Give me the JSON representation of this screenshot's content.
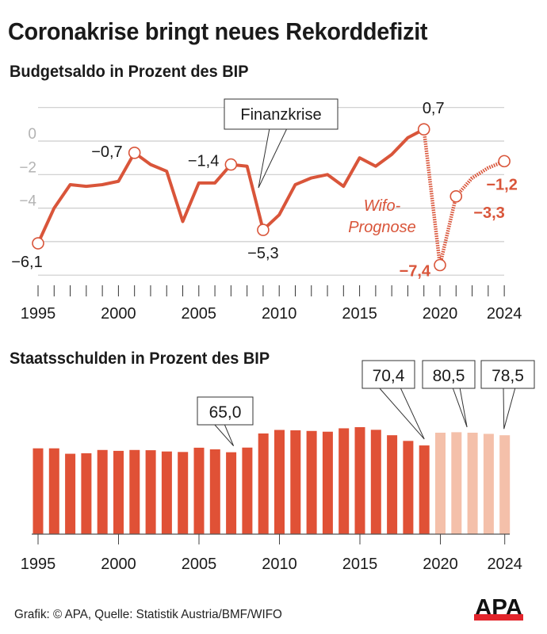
{
  "title": "Coronakrise bringt neues Rekorddefizit",
  "footer": {
    "source": "Grafik: © APA, Quelle: Statistik Austria/BMF/WIFO",
    "logo_text": "APA",
    "logo_icon": "apa-logo"
  },
  "colors": {
    "line": "#d9553a",
    "bar_actual": "#e05136",
    "bar_forecast": "#f4c0aa",
    "grid": "#cccccc",
    "y_tick": "#b3b3b3",
    "text": "#1a1a1a"
  },
  "chart_data": [
    {
      "type": "line",
      "title": "Budgetsaldo in Prozent des BIP",
      "xlabel": "",
      "ylabel": "",
      "x": [
        1995,
        1996,
        1997,
        1998,
        1999,
        2000,
        2001,
        2002,
        2003,
        2004,
        2005,
        2006,
        2007,
        2008,
        2009,
        2010,
        2011,
        2012,
        2013,
        2014,
        2015,
        2016,
        2017,
        2018,
        2019,
        2020,
        2021,
        2022,
        2023,
        2024
      ],
      "series": [
        {
          "name": "Budgetsaldo",
          "values": [
            -6.1,
            -4.0,
            -2.6,
            -2.7,
            -2.6,
            -2.4,
            -0.7,
            -1.4,
            -1.8,
            -4.8,
            -2.5,
            -2.5,
            -1.4,
            -1.5,
            -5.3,
            -4.4,
            -2.6,
            -2.2,
            -2.0,
            -2.7,
            -1.0,
            -1.5,
            -0.8,
            0.2,
            0.7,
            -7.4,
            -3.3,
            -2.2,
            -1.6,
            -1.2
          ],
          "forecast_from": 2019
        }
      ],
      "ylim": [
        -8,
        2
      ],
      "y_ticks": [
        0,
        -2,
        -4
      ],
      "y_tick_labels": [
        "0",
        "−2",
        "−4"
      ],
      "x_tick_labels": [
        "1995",
        "2000",
        "2005",
        "2010",
        "2015",
        "2020",
        "2024"
      ],
      "x_tick_label_years": [
        1995,
        2000,
        2005,
        2010,
        2015,
        2020,
        2024
      ],
      "grid": true,
      "highlighted_points": [
        {
          "year": 1995,
          "label": "−6,1",
          "style": "normal"
        },
        {
          "year": 2001,
          "label": "−0,7",
          "style": "normal"
        },
        {
          "year": 2007,
          "label": "−1,4",
          "style": "normal"
        },
        {
          "year": 2009,
          "label": "−5,3",
          "style": "normal"
        },
        {
          "year": 2019,
          "label": "0,7",
          "style": "normal"
        },
        {
          "year": 2020,
          "label": "−7,4",
          "style": "forecast"
        },
        {
          "year": 2021,
          "label": "−3,3",
          "style": "forecast"
        },
        {
          "year": 2024,
          "label": "−1,2",
          "style": "forecast"
        }
      ],
      "annotations": [
        {
          "text": "Finanzkrise",
          "type": "callout"
        },
        {
          "text_line1": "Wifo-",
          "text_line2": "Prognose",
          "type": "italic-label"
        }
      ]
    },
    {
      "type": "bar",
      "title": "Staatsschulden in Prozent des BIP",
      "xlabel": "",
      "ylabel": "",
      "categories": [
        1995,
        1996,
        1997,
        1998,
        1999,
        2000,
        2001,
        2002,
        2003,
        2004,
        2005,
        2006,
        2007,
        2008,
        2009,
        2010,
        2011,
        2012,
        2013,
        2014,
        2015,
        2016,
        2017,
        2018,
        2019,
        2020,
        2021,
        2022,
        2023,
        2024
      ],
      "series": [
        {
          "name": "Staatsschulden",
          "values": [
            68.1,
            68.1,
            63.8,
            64.2,
            66.8,
            66.1,
            66.8,
            66.6,
            65.6,
            65.2,
            68.6,
            67.3,
            65.0,
            68.7,
            79.9,
            82.7,
            82.4,
            81.9,
            81.3,
            84.0,
            84.9,
            82.8,
            78.5,
            74.0,
            70.4,
            80.5,
            80.9,
            80.5,
            79.6,
            78.5
          ],
          "forecast_from": 2020
        }
      ],
      "ylim": [
        0,
        90
      ],
      "x_tick_labels": [
        "1995",
        "2000",
        "2005",
        "2010",
        "2015",
        "2020",
        "2024"
      ],
      "x_tick_label_years": [
        1995,
        2000,
        2005,
        2010,
        2015,
        2020,
        2024
      ],
      "grid": false,
      "callouts": [
        {
          "year": 2007,
          "label": "65,0"
        },
        {
          "year": 2019,
          "label": "70,4"
        },
        {
          "year": 2022,
          "label": "80,5"
        },
        {
          "year": 2024,
          "label": "78,5"
        }
      ]
    }
  ]
}
